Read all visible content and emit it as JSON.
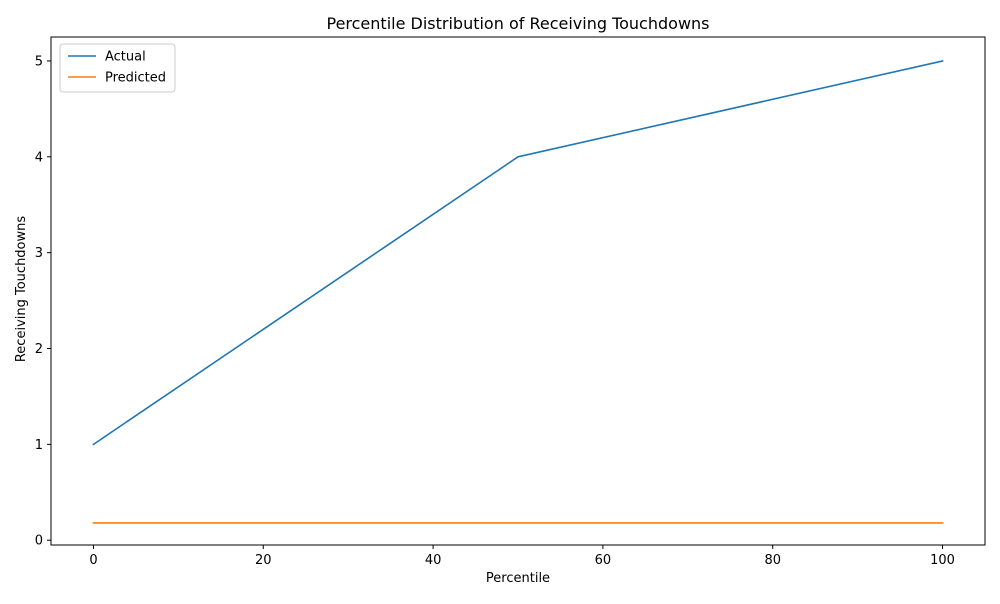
{
  "chart_data": {
    "type": "line",
    "title": "Percentile Distribution of Receiving Touchdowns",
    "xlabel": "Percentile",
    "ylabel": "Receiving Touchdowns",
    "xlim": [
      -5,
      105
    ],
    "ylim": [
      -0.05,
      5.25
    ],
    "x_ticks": [
      0,
      20,
      40,
      60,
      80,
      100
    ],
    "y_ticks": [
      0,
      1,
      2,
      3,
      4,
      5
    ],
    "grid": false,
    "legend": "upper-left",
    "series": [
      {
        "name": "Actual",
        "color": "#1f77b4",
        "x": [
          0,
          50,
          100
        ],
        "y": [
          1,
          4,
          5
        ]
      },
      {
        "name": "Predicted",
        "color": "#ff7f0e",
        "x": [
          0,
          100
        ],
        "y": [
          0.18,
          0.18
        ]
      }
    ]
  }
}
